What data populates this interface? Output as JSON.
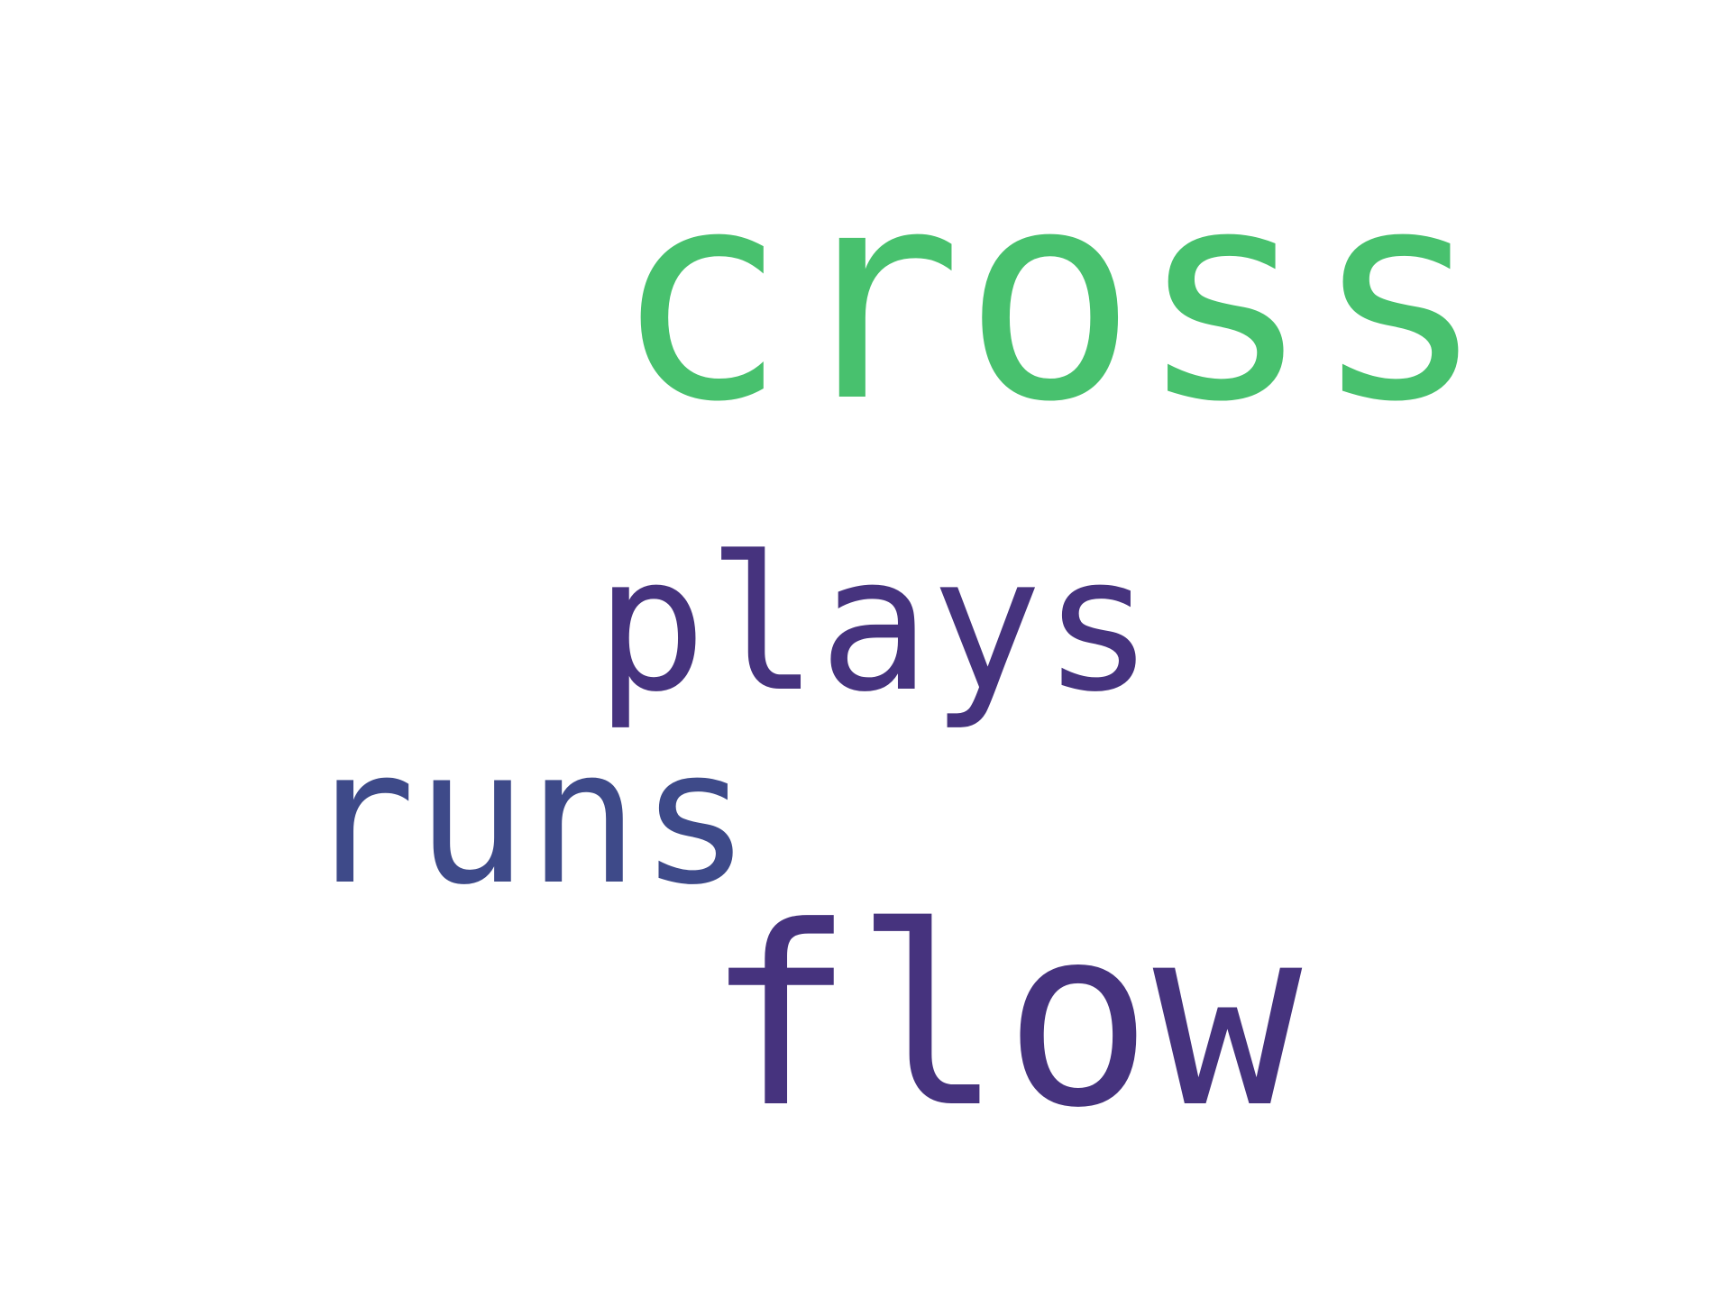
{
  "words": [
    {
      "text": "cross",
      "color": "#48c16e"
    },
    {
      "text": "plays",
      "color": "#46337e"
    },
    {
      "text": "runs",
      "color": "#3e4a89"
    },
    {
      "text": "flow",
      "color": "#46337e"
    }
  ]
}
